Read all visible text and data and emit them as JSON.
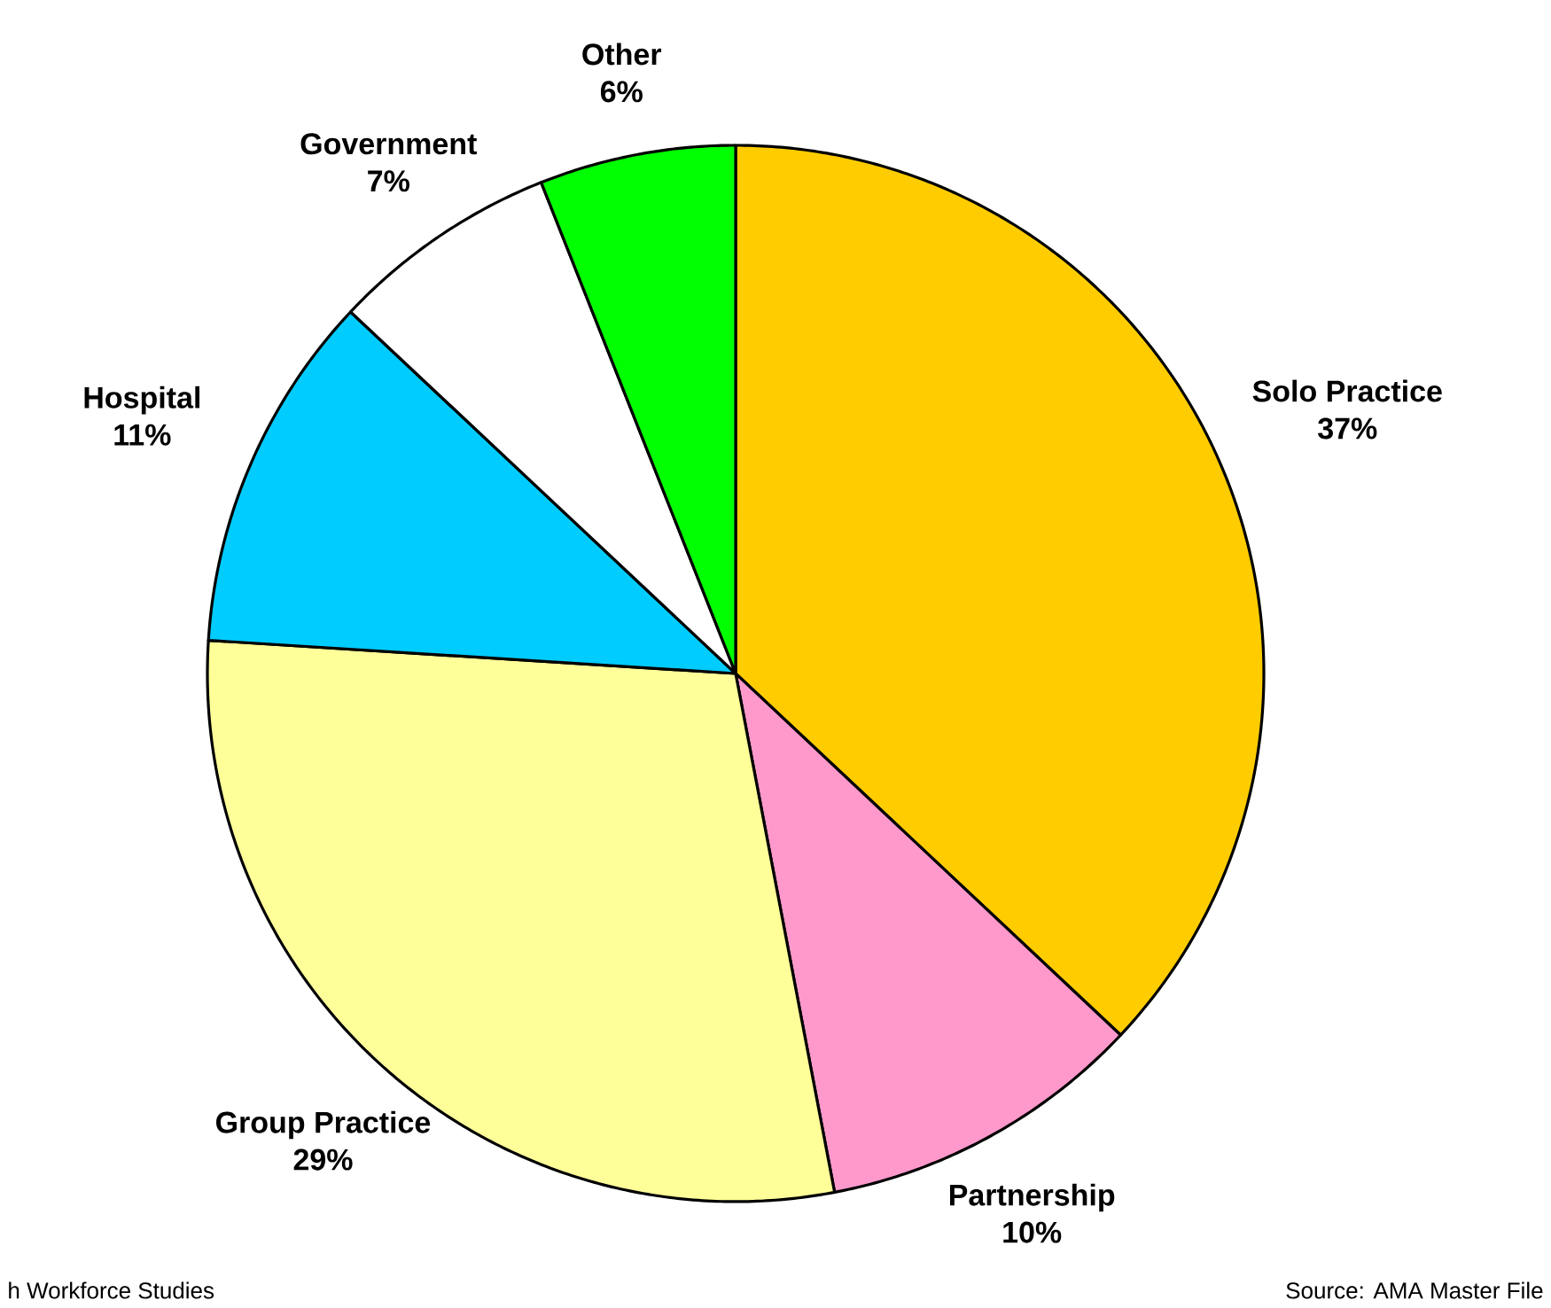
{
  "chart_data": {
    "type": "pie",
    "categories": [
      "Solo Practice",
      "Partnership",
      "Group Practice",
      "Hospital",
      "Government",
      "Other"
    ],
    "values": [
      37,
      10,
      29,
      11,
      7,
      6
    ],
    "value_labels": [
      "37%",
      "10%",
      "29%",
      "11%",
      "7%",
      "6%"
    ],
    "colors": [
      "#ffcc00",
      "#ff99cc",
      "#ffff99",
      "#00ccff",
      "#ffffff",
      "#00ff00"
    ],
    "annotations": [
      "h Workforce Studies",
      "Source: AMA Master File"
    ]
  }
}
